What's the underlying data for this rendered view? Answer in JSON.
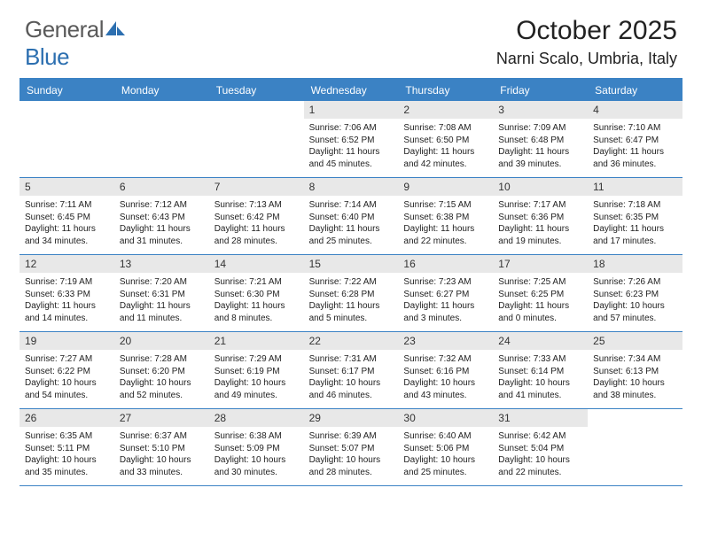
{
  "logo": {
    "text1": "General",
    "text2": "Blue"
  },
  "title": "October 2025",
  "location": "Narni Scalo, Umbria, Italy",
  "colors": {
    "header_bg": "#3b82c4",
    "header_text": "#ffffff",
    "daynum_bg": "#e8e8e8",
    "border": "#3b82c4",
    "text": "#222222",
    "logo_grey": "#5a5a5a",
    "logo_blue": "#2c6fb0",
    "background": "#ffffff"
  },
  "day_headers": [
    "Sunday",
    "Monday",
    "Tuesday",
    "Wednesday",
    "Thursday",
    "Friday",
    "Saturday"
  ],
  "weeks": [
    [
      {
        "empty": true
      },
      {
        "empty": true
      },
      {
        "empty": true
      },
      {
        "n": "1",
        "sr": "7:06 AM",
        "ss": "6:52 PM",
        "dl": "11 hours and 45 minutes."
      },
      {
        "n": "2",
        "sr": "7:08 AM",
        "ss": "6:50 PM",
        "dl": "11 hours and 42 minutes."
      },
      {
        "n": "3",
        "sr": "7:09 AM",
        "ss": "6:48 PM",
        "dl": "11 hours and 39 minutes."
      },
      {
        "n": "4",
        "sr": "7:10 AM",
        "ss": "6:47 PM",
        "dl": "11 hours and 36 minutes."
      }
    ],
    [
      {
        "n": "5",
        "sr": "7:11 AM",
        "ss": "6:45 PM",
        "dl": "11 hours and 34 minutes."
      },
      {
        "n": "6",
        "sr": "7:12 AM",
        "ss": "6:43 PM",
        "dl": "11 hours and 31 minutes."
      },
      {
        "n": "7",
        "sr": "7:13 AM",
        "ss": "6:42 PM",
        "dl": "11 hours and 28 minutes."
      },
      {
        "n": "8",
        "sr": "7:14 AM",
        "ss": "6:40 PM",
        "dl": "11 hours and 25 minutes."
      },
      {
        "n": "9",
        "sr": "7:15 AM",
        "ss": "6:38 PM",
        "dl": "11 hours and 22 minutes."
      },
      {
        "n": "10",
        "sr": "7:17 AM",
        "ss": "6:36 PM",
        "dl": "11 hours and 19 minutes."
      },
      {
        "n": "11",
        "sr": "7:18 AM",
        "ss": "6:35 PM",
        "dl": "11 hours and 17 minutes."
      }
    ],
    [
      {
        "n": "12",
        "sr": "7:19 AM",
        "ss": "6:33 PM",
        "dl": "11 hours and 14 minutes."
      },
      {
        "n": "13",
        "sr": "7:20 AM",
        "ss": "6:31 PM",
        "dl": "11 hours and 11 minutes."
      },
      {
        "n": "14",
        "sr": "7:21 AM",
        "ss": "6:30 PM",
        "dl": "11 hours and 8 minutes."
      },
      {
        "n": "15",
        "sr": "7:22 AM",
        "ss": "6:28 PM",
        "dl": "11 hours and 5 minutes."
      },
      {
        "n": "16",
        "sr": "7:23 AM",
        "ss": "6:27 PM",
        "dl": "11 hours and 3 minutes."
      },
      {
        "n": "17",
        "sr": "7:25 AM",
        "ss": "6:25 PM",
        "dl": "11 hours and 0 minutes."
      },
      {
        "n": "18",
        "sr": "7:26 AM",
        "ss": "6:23 PM",
        "dl": "10 hours and 57 minutes."
      }
    ],
    [
      {
        "n": "19",
        "sr": "7:27 AM",
        "ss": "6:22 PM",
        "dl": "10 hours and 54 minutes."
      },
      {
        "n": "20",
        "sr": "7:28 AM",
        "ss": "6:20 PM",
        "dl": "10 hours and 52 minutes."
      },
      {
        "n": "21",
        "sr": "7:29 AM",
        "ss": "6:19 PM",
        "dl": "10 hours and 49 minutes."
      },
      {
        "n": "22",
        "sr": "7:31 AM",
        "ss": "6:17 PM",
        "dl": "10 hours and 46 minutes."
      },
      {
        "n": "23",
        "sr": "7:32 AM",
        "ss": "6:16 PM",
        "dl": "10 hours and 43 minutes."
      },
      {
        "n": "24",
        "sr": "7:33 AM",
        "ss": "6:14 PM",
        "dl": "10 hours and 41 minutes."
      },
      {
        "n": "25",
        "sr": "7:34 AM",
        "ss": "6:13 PM",
        "dl": "10 hours and 38 minutes."
      }
    ],
    [
      {
        "n": "26",
        "sr": "6:35 AM",
        "ss": "5:11 PM",
        "dl": "10 hours and 35 minutes."
      },
      {
        "n": "27",
        "sr": "6:37 AM",
        "ss": "5:10 PM",
        "dl": "10 hours and 33 minutes."
      },
      {
        "n": "28",
        "sr": "6:38 AM",
        "ss": "5:09 PM",
        "dl": "10 hours and 30 minutes."
      },
      {
        "n": "29",
        "sr": "6:39 AM",
        "ss": "5:07 PM",
        "dl": "10 hours and 28 minutes."
      },
      {
        "n": "30",
        "sr": "6:40 AM",
        "ss": "5:06 PM",
        "dl": "10 hours and 25 minutes."
      },
      {
        "n": "31",
        "sr": "6:42 AM",
        "ss": "5:04 PM",
        "dl": "10 hours and 22 minutes."
      },
      {
        "empty": true
      }
    ]
  ],
  "labels": {
    "sunrise": "Sunrise:",
    "sunset": "Sunset:",
    "daylight": "Daylight:"
  }
}
